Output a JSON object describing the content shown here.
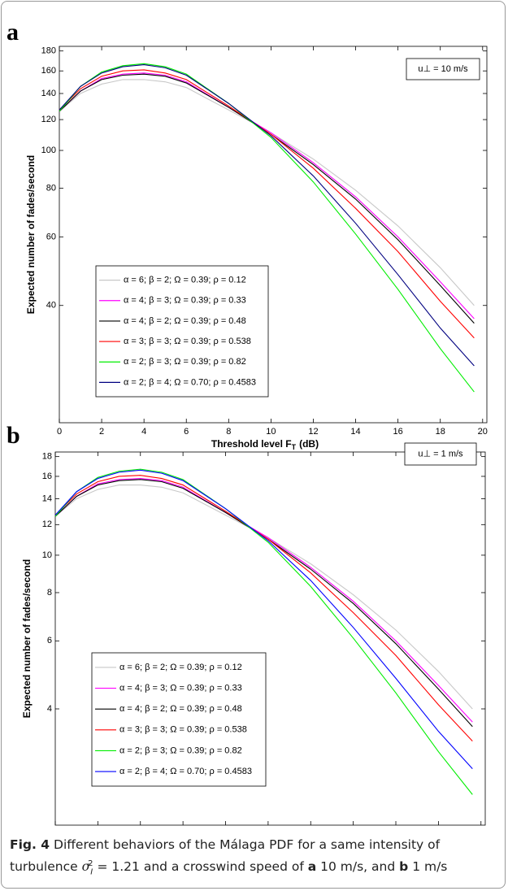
{
  "chart_data": [
    {
      "type": "line",
      "panel": "a",
      "annotation": "u⊥ = 10 m/s",
      "y_label": "Expected number of fades/second",
      "x_label": "Threshold level F",
      "x_label_sub": "T",
      "x_label_unit": "(dB)",
      "log_y": true,
      "legend": "lower left",
      "x": [
        0,
        1,
        2,
        3,
        4,
        5,
        6,
        8,
        10,
        12,
        14,
        16,
        18,
        19.6
      ],
      "xlim": [
        0,
        20.2
      ],
      "xticks": [
        0,
        2,
        4,
        6,
        8,
        10,
        12,
        14,
        16,
        18,
        20
      ],
      "ylim": [
        20,
        185
      ],
      "yticks": [
        40,
        60,
        80,
        100,
        120,
        140,
        160,
        180
      ],
      "series": [
        {
          "name": "α = 6; β = 2; Ω = 0.39; ρ = 0.12",
          "color": "#c8c8c8",
          "values": [
            126,
            140,
            148,
            152,
            152,
            150,
            145,
            127,
            111,
            95,
            79,
            64,
            50,
            40
          ]
        },
        {
          "name": "α = 4; β = 3; Ω = 0.39; ρ = 0.33",
          "color": "#ff00ff",
          "values": [
            126,
            142,
            153,
            157,
            158,
            156,
            150,
            129,
            111,
            93,
            76,
            60,
            46,
            37
          ]
        },
        {
          "name": "α = 4; β = 2; Ω = 0.39; ρ = 0.48",
          "color": "#000000",
          "values": [
            126,
            142,
            152,
            156,
            157,
            155,
            149,
            129,
            110,
            92,
            75,
            59,
            45,
            36
          ]
        },
        {
          "name": "α = 3; β = 3; Ω = 0.39; ρ = 0.538",
          "color": "#ff0000",
          "values": [
            127,
            144,
            155,
            160,
            161,
            158,
            152,
            130,
            110,
            90,
            71,
            55,
            41,
            33
          ]
        },
        {
          "name": "α = 2; β = 3; Ω = 0.39; ρ = 0.82",
          "color": "#00ee00",
          "values": [
            126,
            146,
            159,
            165,
            167,
            164,
            157,
            132,
            108,
            83,
            61,
            44,
            31,
            24
          ]
        },
        {
          "name": "α = 2; β = 4; Ω = 0.70; ρ = 0.4583",
          "color": "#000080",
          "values": [
            127,
            146,
            158,
            164,
            166,
            163,
            156,
            132,
            109,
            86,
            65,
            48,
            35,
            28
          ]
        }
      ]
    },
    {
      "type": "line",
      "panel": "b",
      "annotation": "u⊥ = 1 m/s",
      "y_label": "Expected number of fades/second",
      "x_label": "Threshold level F",
      "x_label_sub": "T",
      "x_label_unit": "(dB)",
      "log_y": true,
      "legend": "lower left",
      "x": [
        0,
        1,
        2,
        3,
        4,
        5,
        6,
        8,
        10,
        12,
        14,
        16,
        18,
        19.6
      ],
      "xlim": [
        0,
        20.2
      ],
      "xticks": [
        0,
        2,
        4,
        6,
        8,
        10,
        12,
        14,
        16,
        18,
        20
      ],
      "ylim": [
        2,
        18.5
      ],
      "yticks": [
        4,
        6,
        8,
        10,
        12,
        14,
        16,
        18
      ],
      "series": [
        {
          "name": "α = 6; β = 2; Ω = 0.39; ρ = 0.12",
          "color": "#c8c8c8",
          "values": [
            12.6,
            14.0,
            14.8,
            15.2,
            15.2,
            15.0,
            14.5,
            12.7,
            11.1,
            9.5,
            7.9,
            6.4,
            5.0,
            4.0
          ]
        },
        {
          "name": "α = 4; β = 3; Ω = 0.39; ρ = 0.33",
          "color": "#ff00ff",
          "values": [
            12.6,
            14.2,
            15.3,
            15.7,
            15.8,
            15.6,
            15.0,
            12.9,
            11.1,
            9.3,
            7.6,
            6.0,
            4.6,
            3.7
          ]
        },
        {
          "name": "α = 4; β = 2; Ω = 0.39; ρ = 0.48",
          "color": "#000000",
          "values": [
            12.6,
            14.2,
            15.2,
            15.6,
            15.7,
            15.5,
            14.9,
            12.9,
            11.0,
            9.2,
            7.5,
            5.9,
            4.5,
            3.6
          ]
        },
        {
          "name": "α = 3; β = 3; Ω = 0.39; ρ = 0.538",
          "color": "#ff0000",
          "values": [
            12.7,
            14.4,
            15.5,
            16.0,
            16.1,
            15.8,
            15.2,
            13.0,
            11.0,
            9.0,
            7.1,
            5.5,
            4.1,
            3.3
          ]
        },
        {
          "name": "α = 2; β = 3; Ω = 0.39; ρ = 0.82",
          "color": "#00ee00",
          "values": [
            12.6,
            14.6,
            15.9,
            16.5,
            16.7,
            16.4,
            15.7,
            13.2,
            10.8,
            8.3,
            6.1,
            4.4,
            3.1,
            2.4
          ]
        },
        {
          "name": "α = 2; β = 4; Ω = 0.70; ρ = 0.4583",
          "color": "#0000ff",
          "values": [
            12.7,
            14.6,
            15.8,
            16.4,
            16.6,
            16.3,
            15.6,
            13.2,
            10.9,
            8.6,
            6.5,
            4.8,
            3.5,
            2.8
          ]
        }
      ]
    }
  ],
  "caption": {
    "label": "Fig. 4",
    "text1": "Different behaviors of the Málaga PDF for a same intensity of turbulence",
    "sigma": "σ",
    "sigma_sub": "I",
    "sigma_sup": "2",
    "text2": "= 1.21 and a crosswind speed of",
    "a": "a",
    "text3": "10 m/s, and",
    "b": "b",
    "text4": "1 m/s"
  }
}
